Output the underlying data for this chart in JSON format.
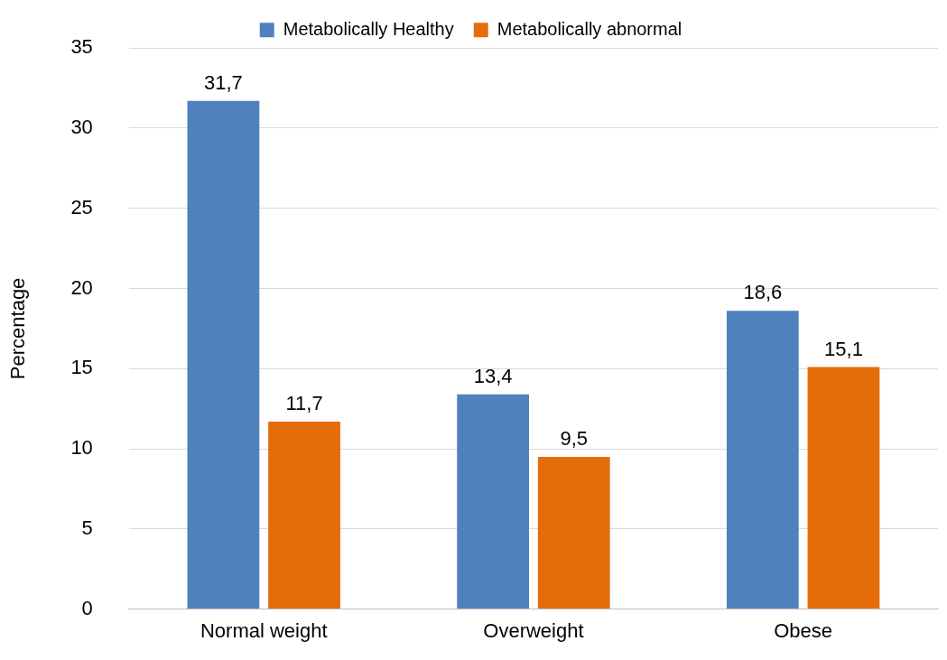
{
  "chart_data": {
    "type": "bar",
    "ylabel": "Percentage",
    "categories": [
      "Normal weight",
      "Overweight",
      "Obese"
    ],
    "series": [
      {
        "name": "Metabolically Healthy",
        "color": "#4f81bd",
        "values": [
          31.7,
          13.4,
          18.6
        ],
        "value_labels": [
          "31,7",
          "13,4",
          "18,6"
        ]
      },
      {
        "name": "Metabolically abnormal",
        "color": "#e46c0a",
        "values": [
          11.7,
          9.5,
          15.1
        ],
        "value_labels": [
          "11,7",
          "9,5",
          "15,1"
        ]
      }
    ],
    "ylim": [
      0,
      35
    ],
    "yticks": [
      0,
      5,
      10,
      15,
      20,
      25,
      30,
      35
    ],
    "grid": "y",
    "legend": "top"
  }
}
